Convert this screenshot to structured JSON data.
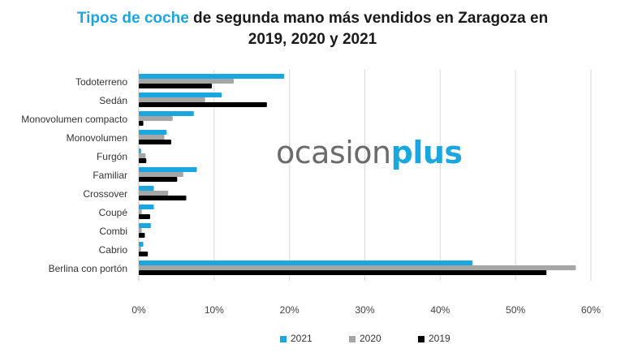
{
  "title": {
    "highlight": "Tipos de coche",
    "rest_line1": " de segunda mano más vendidos en Zaragoza en",
    "line2": "2019, 2020 y 2021"
  },
  "watermark": {
    "part1": "ocasion",
    "part2": "plus"
  },
  "colors": {
    "2021": "#1aa7e0",
    "2020": "#a6a6a6",
    "2019": "#000000",
    "grid": "#d9d9d9"
  },
  "chart_data": {
    "type": "bar",
    "orientation": "horizontal",
    "categories": [
      "Todoterreno",
      "Sedán",
      "Monovolumen compacto",
      "Monovolumen",
      "Furgón",
      "Familiar",
      "Crossover",
      "Coupé",
      "Combi",
      "Cabrio",
      "Berlina con portón"
    ],
    "series": [
      {
        "name": "2021",
        "values": [
          19.3,
          11.0,
          7.3,
          3.7,
          0.3,
          7.7,
          2.0,
          2.0,
          1.6,
          0.6,
          44.3
        ]
      },
      {
        "name": "2020",
        "values": [
          12.6,
          8.8,
          4.5,
          3.4,
          0.9,
          5.9,
          3.9,
          0.4,
          0.4,
          0.3,
          58.0
        ]
      },
      {
        "name": "2019",
        "values": [
          9.7,
          17.0,
          0.6,
          4.3,
          1.0,
          5.1,
          6.3,
          1.5,
          0.8,
          1.2,
          54.1
        ]
      }
    ],
    "x_ticks": [
      "0%",
      "10%",
      "20%",
      "30%",
      "40%",
      "50%",
      "60%"
    ],
    "xlim": [
      0,
      60
    ],
    "grid": true,
    "legend_position": "bottom"
  }
}
